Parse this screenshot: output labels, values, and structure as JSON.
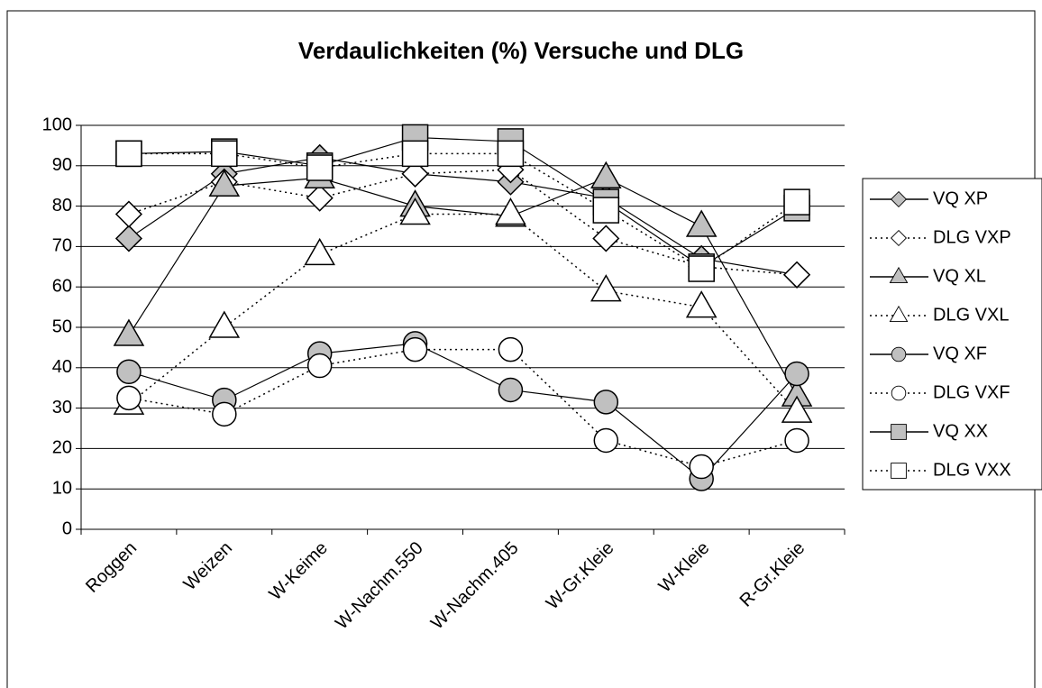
{
  "chart_data": {
    "type": "line",
    "title": "Verdaulichkeiten (%) Versuche und DLG",
    "categories": [
      "Roggen",
      "Weizen",
      "W-Keime",
      "W-Nachm.550",
      "W-Nachm.405",
      "W-Gr.Kleie",
      "W-Kleie",
      "R-Gr.Kleie"
    ],
    "ylim": [
      0,
      100
    ],
    "yticks": [
      0,
      10,
      20,
      30,
      40,
      50,
      60,
      70,
      80,
      90,
      100
    ],
    "grid": true,
    "legend": "right",
    "series": [
      {
        "name": "VQ XP",
        "color": "#000000",
        "fill": "#c0c0c0",
        "marker": "diamond",
        "dash": false,
        "values": [
          72,
          88,
          92,
          88,
          86,
          82,
          67,
          63
        ]
      },
      {
        "name": "DLG VXP",
        "color": "#000000",
        "fill": "#ffffff",
        "marker": "diamond",
        "dash": true,
        "values": [
          78,
          86,
          82,
          88,
          89,
          72,
          65,
          63
        ]
      },
      {
        "name": "VQ XL",
        "color": "#000000",
        "fill": "#c0c0c0",
        "marker": "triangle",
        "dash": false,
        "values": [
          48,
          85,
          87,
          80,
          77.5,
          87,
          75,
          33
        ]
      },
      {
        "name": "DLG VXL",
        "color": "#000000",
        "fill": "#ffffff",
        "marker": "triangle",
        "dash": true,
        "values": [
          31,
          50,
          68,
          78,
          78,
          59,
          55,
          29
        ]
      },
      {
        "name": "VQ XF",
        "color": "#000000",
        "fill": "#c0c0c0",
        "marker": "circle",
        "dash": false,
        "values": [
          39,
          32,
          43.5,
          46,
          34.5,
          31.5,
          12.5,
          38.5
        ]
      },
      {
        "name": "DLG VXF",
        "color": "#000000",
        "fill": "#ffffff",
        "marker": "circle",
        "dash": true,
        "values": [
          32.5,
          28.5,
          40.5,
          44.5,
          44.5,
          22,
          15.5,
          22
        ]
      },
      {
        "name": "VQ XX",
        "color": "#000000",
        "fill": "#c0c0c0",
        "marker": "square",
        "dash": false,
        "values": [
          93,
          93.5,
          90,
          97,
          96,
          81,
          65,
          79.5
        ]
      },
      {
        "name": "DLG VXX",
        "color": "#000000",
        "fill": "#ffffff",
        "marker": "square",
        "dash": true,
        "values": [
          93,
          93,
          89.5,
          93,
          93,
          79,
          64.5,
          81
        ]
      }
    ]
  }
}
